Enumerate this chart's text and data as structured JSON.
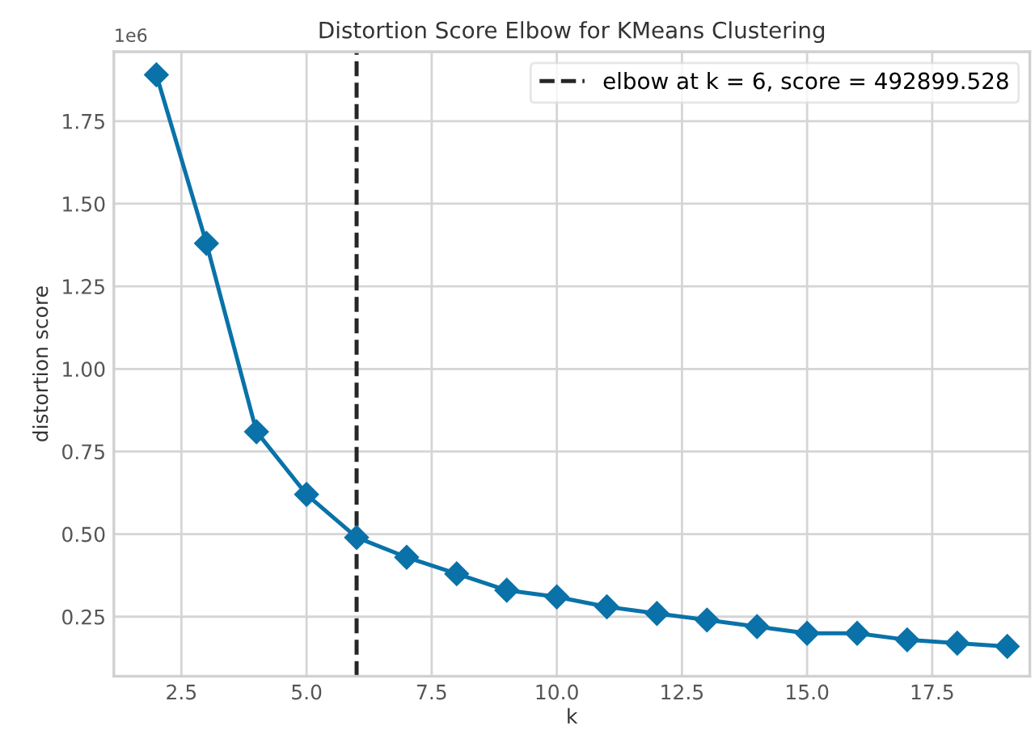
{
  "chart_data": {
    "type": "line",
    "title": "Distortion Score Elbow for KMeans Clustering",
    "xlabel": "k",
    "ylabel": "distortion score",
    "x": [
      2,
      3,
      4,
      5,
      6,
      7,
      8,
      9,
      10,
      11,
      12,
      13,
      14,
      15,
      16,
      17,
      18,
      19
    ],
    "series": [
      {
        "color": "#0a72a8",
        "values": [
          1.89,
          1.38,
          0.81,
          0.62,
          0.49,
          0.43,
          0.38,
          0.33,
          0.31,
          0.28,
          0.26,
          0.24,
          0.22,
          0.2,
          0.2,
          0.18,
          0.17,
          0.16
        ]
      }
    ],
    "marker": "diamond",
    "line_style": "solid",
    "xlim": [
      1.15,
      19.45
    ],
    "ylim": [
      0.07,
      1.96
    ],
    "xticks": [
      2.5,
      {
        "value": 5,
        "label": "5.0"
      },
      7.5,
      {
        "value": 10,
        "label": "10.0"
      },
      12.5,
      {
        "value": 15,
        "label": "15.0"
      },
      17.5
    ],
    "yticks": [
      0.25,
      {
        "value": 0.5,
        "label": "0.50"
      },
      0.75,
      {
        "value": 1,
        "label": "1.00"
      },
      1.25,
      {
        "value": 1.5,
        "label": "1.50"
      },
      1.75
    ],
    "ref_lines": [
      {
        "axis": "x",
        "value": 6,
        "label": "elbow at k = 6, score = 492899.528",
        "color": "#262626",
        "line_style": "dashed"
      }
    ],
    "annotations": [
      "1e6"
    ],
    "grid": true,
    "legend": "top right"
  }
}
